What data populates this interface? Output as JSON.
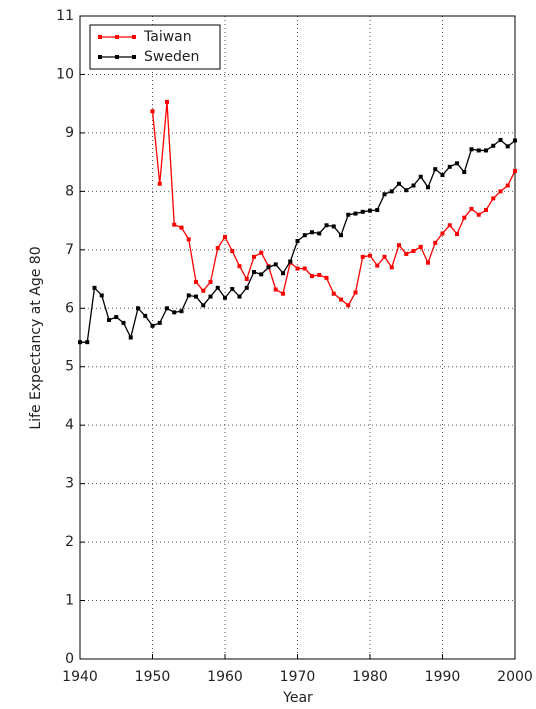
{
  "chart_data": {
    "type": "line",
    "xlabel": "Year",
    "ylabel": "Life Expectancy at Age 80",
    "xlim": [
      1940,
      2000
    ],
    "xticks": [
      1940,
      1950,
      1960,
      1970,
      1980,
      1990,
      2000
    ],
    "ylim": [
      0,
      11
    ],
    "yticks": [
      0,
      1,
      2,
      3,
      4,
      5,
      6,
      7,
      8,
      9,
      10,
      11
    ],
    "grid": true,
    "legend": "upper left",
    "series": [
      {
        "name": "Taiwan",
        "color": "#ff0000",
        "x": [
          1950,
          1951,
          1952,
          1953,
          1954,
          1955,
          1956,
          1957,
          1958,
          1959,
          1960,
          1961,
          1962,
          1963,
          1964,
          1965,
          1966,
          1967,
          1968,
          1969,
          1970,
          1971,
          1972,
          1973,
          1974,
          1975,
          1976,
          1977,
          1978,
          1979,
          1980,
          1981,
          1982,
          1983,
          1984,
          1985,
          1986,
          1987,
          1988,
          1989,
          1990,
          1991,
          1992,
          1993,
          1994,
          1995,
          1996,
          1997,
          1998,
          1999,
          2000
        ],
        "values": [
          9.37,
          8.13,
          9.53,
          7.43,
          7.38,
          7.18,
          6.45,
          6.3,
          6.45,
          7.03,
          7.22,
          6.98,
          6.72,
          6.5,
          6.88,
          6.95,
          6.72,
          6.32,
          6.25,
          6.78,
          6.68,
          6.68,
          6.55,
          6.57,
          6.52,
          6.25,
          6.15,
          6.05,
          6.27,
          6.88,
          6.9,
          6.73,
          6.88,
          6.7,
          7.08,
          6.93,
          6.98,
          7.05,
          6.78,
          7.12,
          7.28,
          7.42,
          7.27,
          7.55,
          7.7,
          7.6,
          7.68,
          7.88,
          8.0,
          8.1,
          8.35
        ]
      },
      {
        "name": "Sweden",
        "color": "#000000",
        "x": [
          1940,
          1941,
          1942,
          1943,
          1944,
          1945,
          1946,
          1947,
          1948,
          1949,
          1950,
          1951,
          1952,
          1953,
          1954,
          1955,
          1956,
          1957,
          1958,
          1959,
          1960,
          1961,
          1962,
          1963,
          1964,
          1965,
          1966,
          1967,
          1968,
          1969,
          1970,
          1971,
          1972,
          1973,
          1974,
          1975,
          1976,
          1977,
          1978,
          1979,
          1980,
          1981,
          1982,
          1983,
          1984,
          1985,
          1986,
          1987,
          1988,
          1989,
          1990,
          1991,
          1992,
          1993,
          1994,
          1995,
          1996,
          1997,
          1998,
          1999,
          2000
        ],
        "values": [
          5.42,
          5.42,
          6.35,
          6.22,
          5.8,
          5.85,
          5.75,
          5.5,
          6.0,
          5.87,
          5.7,
          5.75,
          6.0,
          5.93,
          5.95,
          6.22,
          6.2,
          6.05,
          6.2,
          6.35,
          6.18,
          6.33,
          6.2,
          6.35,
          6.62,
          6.58,
          6.7,
          6.75,
          6.6,
          6.8,
          7.15,
          7.25,
          7.3,
          7.28,
          7.42,
          7.4,
          7.25,
          7.6,
          7.62,
          7.65,
          7.67,
          7.68,
          7.95,
          8.0,
          8.13,
          8.02,
          8.1,
          8.25,
          8.07,
          8.38,
          8.28,
          8.42,
          8.48,
          8.33,
          8.72,
          8.7,
          8.7,
          8.78,
          8.88,
          8.77,
          8.87
        ]
      }
    ]
  }
}
